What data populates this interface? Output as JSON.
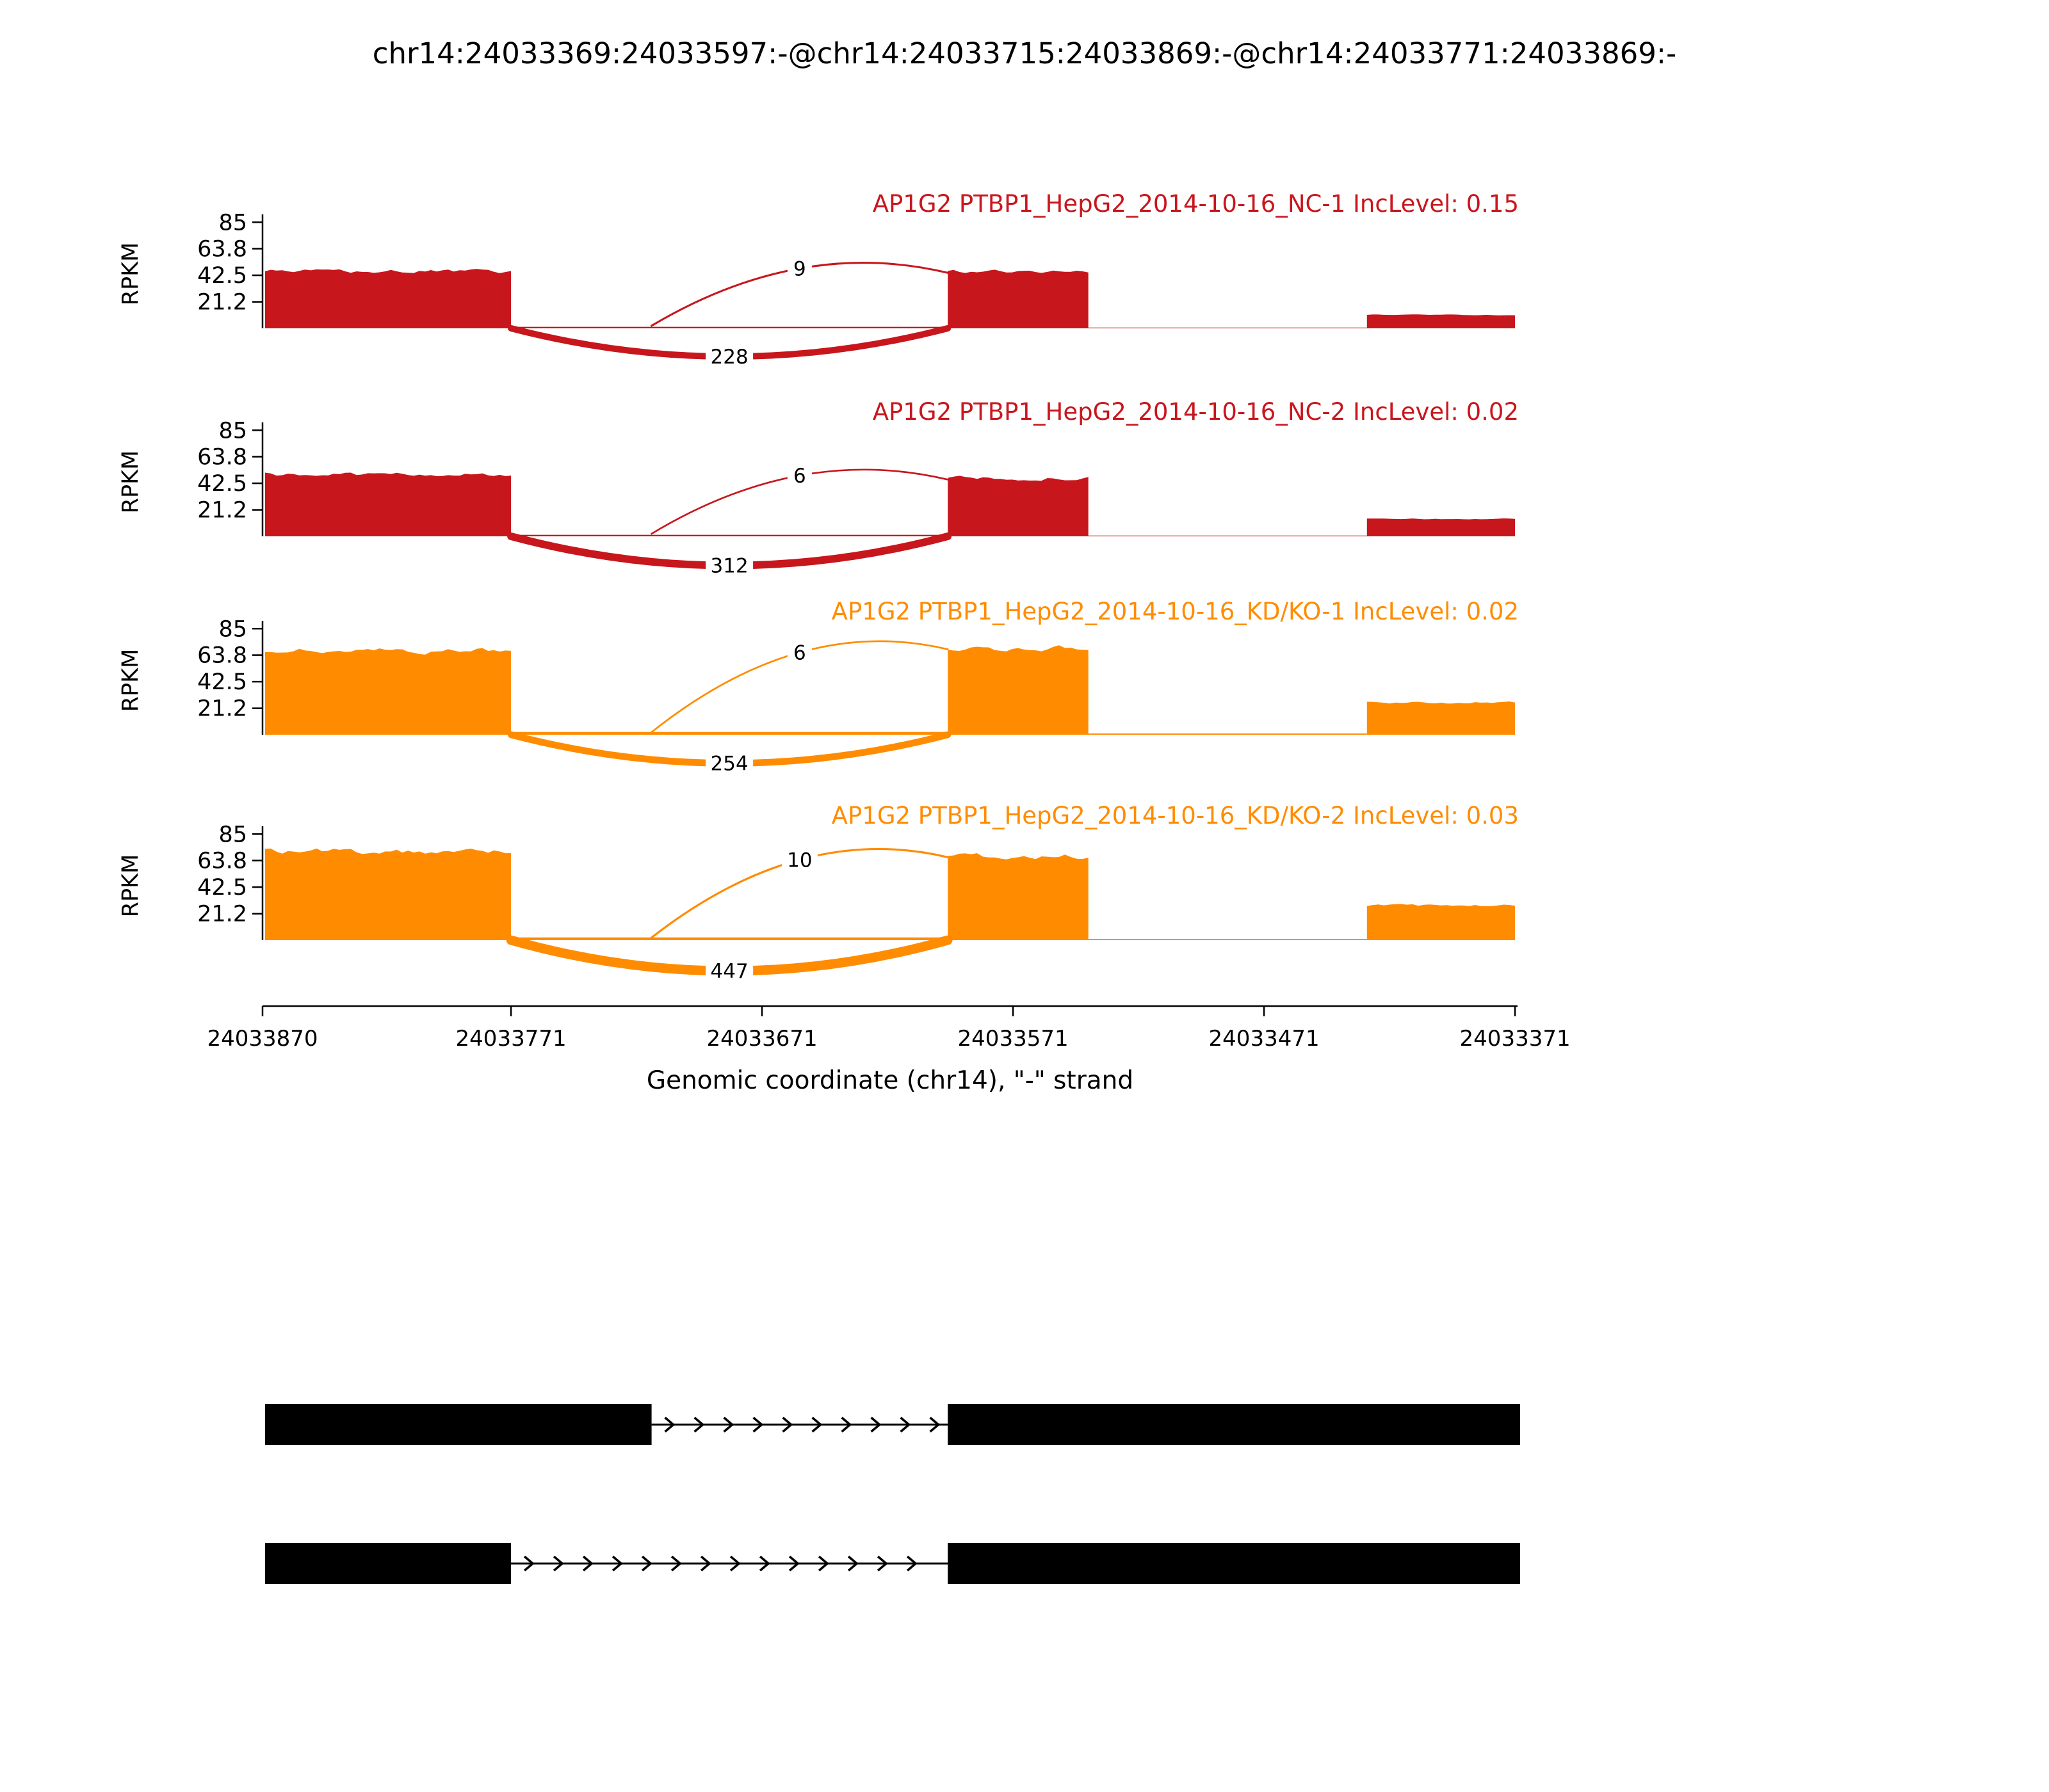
{
  "chart_data": {
    "type": "area",
    "subtype": "rna-seq-sashimi-coverage",
    "title": "chr14:24033369:24033597:-@chr14:24033715:24033869:-@chr14:24033771:24033869:-",
    "xlabel": "Genomic coordinate (chr14), \"-\" strand",
    "ylabel": "RPKM",
    "x_axis": {
      "tick_labels": [
        "24033870",
        "24033771",
        "24033671",
        "24033571",
        "24033471",
        "24033371"
      ],
      "tick_values": [
        24033870,
        24033771,
        24033671,
        24033571,
        24033471,
        24033371
      ],
      "range": [
        24033870,
        24033370
      ],
      "direction": "decreasing"
    },
    "y_axis": {
      "tick_labels": [
        "85",
        "63.8",
        "42.5",
        "21.2"
      ],
      "tick_values": [
        85,
        63.8,
        42.5,
        21.2
      ],
      "range": [
        0,
        92
      ]
    },
    "colors": {
      "group1": "#C8161D",
      "group2": "#FF8C00",
      "annotation": "#000000"
    },
    "tracks": [
      {
        "label": "AP1G2 PTBP1_HepG2_2014-10-16_NC-1 IncLevel: 0.15",
        "inc_level": "0.15",
        "color": "#C8161D",
        "coverage": [
          {
            "start": 24033869,
            "end": 24033771,
            "rpkm": 46
          },
          {
            "start": 24033771,
            "end": 24033597,
            "rpkm": 1.2
          },
          {
            "start": 24033597,
            "end": 24033541,
            "rpkm": 46
          },
          {
            "start": 24033541,
            "end": 24033430,
            "rpkm": 0.6
          },
          {
            "start": 24033430,
            "end": 24033371,
            "rpkm": 11
          }
        ],
        "junctions": [
          {
            "start": 24033715,
            "end": 24033597,
            "count": 9,
            "arc": "top"
          },
          {
            "start": 24033771,
            "end": 24033597,
            "count": 228,
            "arc": "bottom"
          }
        ]
      },
      {
        "label": "AP1G2 PTBP1_HepG2_2014-10-16_NC-2 IncLevel: 0.02",
        "inc_level": "0.02",
        "color": "#C8161D",
        "coverage": [
          {
            "start": 24033869,
            "end": 24033771,
            "rpkm": 50
          },
          {
            "start": 24033771,
            "end": 24033597,
            "rpkm": 1.2
          },
          {
            "start": 24033597,
            "end": 24033541,
            "rpkm": 47
          },
          {
            "start": 24033541,
            "end": 24033430,
            "rpkm": 0.6
          },
          {
            "start": 24033430,
            "end": 24033371,
            "rpkm": 14
          }
        ],
        "junctions": [
          {
            "start": 24033715,
            "end": 24033597,
            "count": 6,
            "arc": "top"
          },
          {
            "start": 24033771,
            "end": 24033597,
            "count": 312,
            "arc": "bottom"
          }
        ]
      },
      {
        "label": "AP1G2 PTBP1_HepG2_2014-10-16_KD/KO-1 IncLevel: 0.02",
        "inc_level": "0.02",
        "color": "#FF8C00",
        "coverage": [
          {
            "start": 24033869,
            "end": 24033771,
            "rpkm": 68
          },
          {
            "start": 24033771,
            "end": 24033597,
            "rpkm": 2.2
          },
          {
            "start": 24033597,
            "end": 24033541,
            "rpkm": 70
          },
          {
            "start": 24033541,
            "end": 24033430,
            "rpkm": 1.0
          },
          {
            "start": 24033430,
            "end": 24033371,
            "rpkm": 26
          }
        ],
        "junctions": [
          {
            "start": 24033715,
            "end": 24033597,
            "count": 6,
            "arc": "top"
          },
          {
            "start": 24033771,
            "end": 24033597,
            "count": 254,
            "arc": "bottom"
          }
        ]
      },
      {
        "label": "AP1G2 PTBP1_HepG2_2014-10-16_KD/KO-2 IncLevel: 0.03",
        "inc_level": "0.03",
        "color": "#FF8C00",
        "coverage": [
          {
            "start": 24033869,
            "end": 24033771,
            "rpkm": 72
          },
          {
            "start": 24033771,
            "end": 24033597,
            "rpkm": 2.2
          },
          {
            "start": 24033597,
            "end": 24033541,
            "rpkm": 68
          },
          {
            "start": 24033541,
            "end": 24033430,
            "rpkm": 1.0
          },
          {
            "start": 24033430,
            "end": 24033371,
            "rpkm": 28
          }
        ],
        "junctions": [
          {
            "start": 24033715,
            "end": 24033597,
            "count": 10,
            "arc": "top"
          },
          {
            "start": 24033771,
            "end": 24033597,
            "count": 447,
            "arc": "bottom"
          }
        ]
      }
    ],
    "isoforms": [
      {
        "exons": [
          [
            24033715,
            24033869
          ],
          [
            24033369,
            24033597
          ]
        ]
      },
      {
        "exons": [
          [
            24033771,
            24033869
          ],
          [
            24033369,
            24033597
          ]
        ]
      }
    ]
  }
}
